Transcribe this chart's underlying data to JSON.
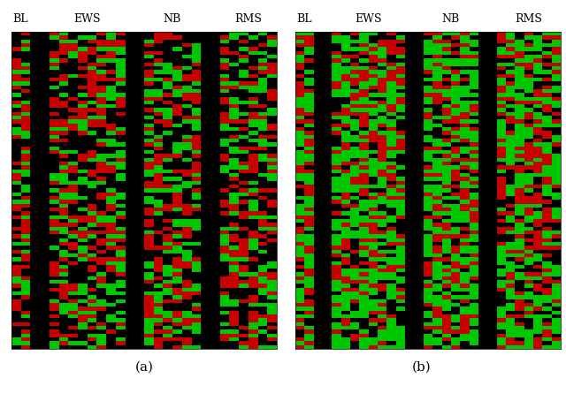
{
  "labels": [
    "BL",
    "EWS",
    "NB",
    "RMS"
  ],
  "caption_a": "(a)",
  "caption_b": "(b)",
  "background_color": "#ffffff",
  "seed_a": 42,
  "seed_b": 99,
  "n_rows": 83,
  "col_sizes_a": [
    2,
    8,
    6,
    6
  ],
  "col_sizes_b": [
    2,
    8,
    6,
    7
  ],
  "separator_cols": 2,
  "prob_a": [
    0.38,
    0.3,
    0.32
  ],
  "prob_b": [
    0.22,
    0.48,
    0.3
  ],
  "green_rgb": [
    0,
    200,
    0
  ],
  "red_rgb": [
    200,
    0,
    0
  ],
  "black_rgb": [
    0,
    0,
    0
  ],
  "label_fontsize": 9,
  "caption_fontsize": 11
}
